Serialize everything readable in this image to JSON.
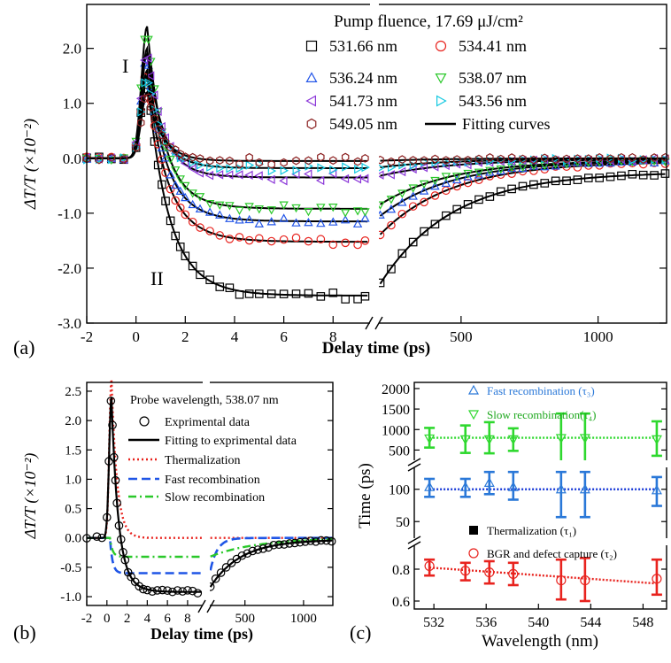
{
  "panels": {
    "a": {
      "label": "(a)",
      "xlabel": "Delay time (ps)",
      "ylabel": "ΔT/T (×10⁻²)",
      "header": "Pump fluence, 17.69 μJ/cm²",
      "annotations": [
        "I",
        "II"
      ],
      "yticks": [
        "2.0",
        "1.0",
        "0.0",
        "-1.0",
        "-2.0",
        "-3.0"
      ],
      "xticks_left": [
        "-2",
        "0",
        "2",
        "4",
        "6",
        "8"
      ],
      "xticks_right": [
        "500",
        "1000"
      ]
    },
    "b": {
      "label": "(b)",
      "xlabel": "Delay time (ps)",
      "ylabel": "ΔT/T (×10⁻²)",
      "header": "Probe wavelength, 538.07 nm",
      "yticks": [
        "2.5",
        "2.0",
        "1.5",
        "1.0",
        "0.5",
        "0.0",
        "-0.5",
        "-1.0"
      ],
      "xticks_left": [
        "-2",
        "0",
        "2",
        "4",
        "6",
        "8"
      ],
      "xticks_right": [
        "500",
        "1000"
      ]
    },
    "c": {
      "label": "(c)",
      "xlabel": "Wavelength (nm)",
      "ylabel": "Time (ps)",
      "yticks_top": [
        "2000",
        "1500",
        "1000",
        "500"
      ],
      "yticks_mid": [
        "100",
        "50"
      ],
      "yticks_bot": [
        "0.8",
        "0.6"
      ],
      "xticks": [
        "532",
        "536",
        "540",
        "544",
        "548"
      ]
    }
  },
  "chart_data": [
    {
      "type": "scatter",
      "panel": "a",
      "title": "Pump fluence, 17.69 μJ/cm²",
      "xlabel": "Delay time (ps)",
      "ylabel": "ΔT/T (×10⁻²)",
      "x_break": [
        9.5,
        200
      ],
      "xlim_left": [
        -2,
        9.5
      ],
      "xlim_right": [
        200,
        1250
      ],
      "ylim": [
        -3.0,
        2.8
      ],
      "legend_position": "top-right",
      "series": [
        {
          "name": "531.66 nm",
          "marker": "square",
          "color": "#000000",
          "peak": 1.5,
          "plateau": -2.5,
          "end": -0.25
        },
        {
          "name": "534.41 nm",
          "marker": "circle",
          "color": "#e8231e",
          "peak": 1.6,
          "plateau": -1.52,
          "end": -0.06
        },
        {
          "name": "536.24 nm",
          "marker": "triangle-up",
          "color": "#2255e8",
          "peak": 1.9,
          "plateau": -1.15,
          "end": -0.04
        },
        {
          "name": "538.07 nm",
          "marker": "triangle-down",
          "color": "#2ac82a",
          "peak": 2.4,
          "plateau": -0.92,
          "end": -0.03
        },
        {
          "name": "541.73 nm",
          "marker": "triangle-left",
          "color": "#8a35d8",
          "peak": 2.0,
          "plateau": -0.35,
          "end": -0.02
        },
        {
          "name": "543.56 nm",
          "marker": "triangle-right",
          "color": "#12c8e0",
          "peak": 1.5,
          "plateau": -0.18,
          "end": -0.01
        },
        {
          "name": "549.05 nm",
          "marker": "hexagon",
          "color": "#8b1f1f",
          "peak": 1.2,
          "plateau": -0.05,
          "end": 0.0
        }
      ],
      "fit_legend": "Fitting curves"
    },
    {
      "type": "line",
      "panel": "b",
      "title": "Probe wavelength, 538.07 nm",
      "xlabel": "Delay time (ps)",
      "ylabel": "ΔT/T (×10⁻²)",
      "xlim_left": [
        -2,
        9.5
      ],
      "xlim_right": [
        200,
        1250
      ],
      "ylim": [
        -1.1,
        2.6
      ],
      "legend_position": "top-right",
      "series": [
        {
          "name": "Exprimental data",
          "style": "circle",
          "color": "#000000",
          "peak": 2.4,
          "plateau": -0.92
        },
        {
          "name": "Fitting to exprimental data",
          "style": "solid",
          "color": "#000000",
          "peak": 2.4,
          "plateau": -0.92
        },
        {
          "name": "Thermalization",
          "style": "dotted",
          "color": "#e8231e",
          "peak": 2.7,
          "plateau": 0.0
        },
        {
          "name": "Fast recombination",
          "style": "dashed",
          "color": "#1f55e6",
          "peak": -0.6,
          "plateau": -0.6
        },
        {
          "name": "Slow recombination",
          "style": "dashdot",
          "color": "#2ac82a",
          "peak": -0.32,
          "plateau": -0.32
        }
      ]
    },
    {
      "type": "scatter",
      "panel": "c",
      "xlabel": "Wavelength (nm)",
      "ylabel": "Time (ps)",
      "x": [
        531.66,
        534.41,
        536.24,
        538.07,
        541.73,
        543.56,
        549.05
      ],
      "xlim": [
        530.5,
        549.8
      ],
      "series": [
        {
          "name": "Fast recombination (τ₃)",
          "marker": "triangle-up",
          "color": "#2a78d8",
          "values": [
            105,
            105,
            115,
            105,
            100,
            100,
            98
          ],
          "err_low": [
            85,
            85,
            90,
            80,
            55,
            55,
            70
          ],
          "err_high": [
            125,
            125,
            145,
            145,
            145,
            145,
            130
          ],
          "mean": 100
        },
        {
          "name": "Slow recombination(τ₄)",
          "marker": "triangle-down",
          "color": "#2ed82e",
          "values": [
            780,
            760,
            760,
            760,
            790,
            790,
            760
          ],
          "err_low": [
            560,
            430,
            420,
            480,
            220,
            220,
            360
          ],
          "err_high": [
            1040,
            1100,
            1180,
            1030,
            1390,
            1390,
            1200
          ],
          "mean": 800
        },
        {
          "name": "Thermalization (τ₁)",
          "marker": "square-filled",
          "color": "#000000",
          "values": [],
          "err_low": [],
          "err_high": []
        },
        {
          "name": "BGR and defect capture (τ₂)",
          "marker": "circle",
          "color": "#e8231e",
          "values": [
            0.82,
            0.79,
            0.78,
            0.77,
            0.73,
            0.73,
            0.74
          ],
          "err_low": [
            0.76,
            0.73,
            0.71,
            0.7,
            0.61,
            0.6,
            0.64
          ],
          "err_high": [
            0.86,
            0.84,
            0.85,
            0.84,
            0.86,
            0.87,
            0.86
          ],
          "fit_start": 0.81,
          "fit_end": 0.71
        }
      ]
    }
  ]
}
